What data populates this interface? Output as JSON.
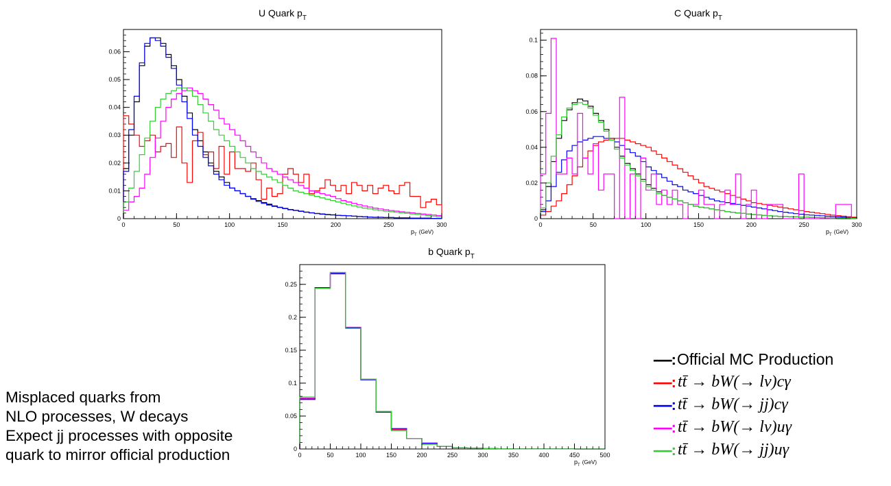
{
  "chart_data": [
    {
      "type": "line",
      "title": "U Quark p",
      "title_sub": "T",
      "xlabel": "p",
      "xlabel_sub": "T",
      "xlabel_unit": "(GeV)",
      "xlim": [
        0,
        300
      ],
      "ylim": [
        0,
        0.068
      ],
      "x_ticks": [
        0,
        50,
        100,
        150,
        200,
        250,
        300
      ],
      "y_ticks": [
        0,
        0.01,
        0.02,
        0.03,
        0.04,
        0.05,
        0.06
      ],
      "y_tick_labels": [
        "0",
        "0.01",
        "0.02",
        "0.03",
        "0.04",
        "0.05",
        "0.06"
      ],
      "bin_width": 5,
      "grid": false,
      "series": [
        {
          "key": "official",
          "color": "#000000",
          "values": [
            0.018,
            0.03,
            0.042,
            0.055,
            0.062,
            0.065,
            0.065,
            0.063,
            0.059,
            0.055,
            0.05,
            0.044,
            0.038,
            0.032,
            0.028,
            0.024,
            0.02,
            0.017,
            0.015,
            0.013,
            0.011,
            0.01,
            0.009,
            0.008,
            0.0072,
            0.0065,
            0.0058,
            0.0052,
            0.0046,
            0.0041,
            0.0037,
            0.0033,
            0.003,
            0.0027,
            0.0024,
            0.0021,
            0.0019,
            0.0017,
            0.0015,
            0.0014,
            0.0012,
            0.0011,
            0.001,
            0.0009,
            0.0008,
            0.0007,
            0.0006,
            0.0005,
            0.0005,
            0.0004,
            0.0004,
            0.0003,
            0.0003,
            0.0003,
            0.0002,
            0.0002,
            0.0002,
            0.0002,
            0.0001,
            0.0001
          ]
        },
        {
          "key": "lv_c",
          "color": "#ff0000",
          "values": [
            0.037,
            0.034,
            0.03,
            0.026,
            0.028,
            0.03,
            0.024,
            0.026,
            0.027,
            0.022,
            0.033,
            0.02,
            0.013,
            0.028,
            0.031,
            0.023,
            0.024,
            0.018,
            0.026,
            0.016,
            0.024,
            0.018,
            0.018,
            0.017,
            0.02,
            0.014,
            0.007,
            0.011,
            0.008,
            0.009,
            0.016,
            0.018,
            0.016,
            0.013,
            0.016,
            0.009,
            0.01,
            0.011,
            0.014,
            0.012,
            0.01,
            0.012,
            0.009,
            0.013,
            0.012,
            0.01,
            0.012,
            0.009,
            0.011,
            0.012,
            0.01,
            0.009,
            0.012,
            0.013,
            0.008,
            0.008,
            0.004,
            0.006,
            0.007,
            0.005
          ]
        },
        {
          "key": "jj_c",
          "color": "#0000ff",
          "values": [
            0.017,
            0.032,
            0.044,
            0.056,
            0.063,
            0.065,
            0.064,
            0.062,
            0.058,
            0.054,
            0.048,
            0.042,
            0.036,
            0.03,
            0.026,
            0.022,
            0.019,
            0.016,
            0.014,
            0.012,
            0.011,
            0.01,
            0.009,
            0.008,
            0.007,
            0.0062,
            0.0055,
            0.0049,
            0.0044,
            0.004,
            0.0036,
            0.0032,
            0.0029,
            0.0026,
            0.0023,
            0.0021,
            0.0018,
            0.0016,
            0.0014,
            0.0013,
            0.0012,
            0.0011,
            0.001,
            0.0009,
            0.0008,
            0.0007,
            0.0006,
            0.0005,
            0.0005,
            0.0004,
            0.0004,
            0.0003,
            0.0003,
            0.0003,
            0.0002,
            0.0002,
            0.0002,
            0.0002,
            0.0001,
            0.0001
          ]
        },
        {
          "key": "lv_u",
          "color": "#ff00ff",
          "values": [
            0.003,
            0.006,
            0.008,
            0.011,
            0.016,
            0.022,
            0.029,
            0.035,
            0.04,
            0.043,
            0.045,
            0.046,
            0.047,
            0.046,
            0.045,
            0.043,
            0.041,
            0.039,
            0.036,
            0.034,
            0.032,
            0.03,
            0.028,
            0.026,
            0.024,
            0.022,
            0.02,
            0.018,
            0.017,
            0.016,
            0.015,
            0.014,
            0.013,
            0.012,
            0.011,
            0.01,
            0.0095,
            0.009,
            0.0085,
            0.008,
            0.0072,
            0.0065,
            0.006,
            0.0055,
            0.005,
            0.0046,
            0.0042,
            0.0038,
            0.0035,
            0.0032,
            0.0029,
            0.0027,
            0.0025,
            0.0023,
            0.0021,
            0.0019,
            0.0017,
            0.0015,
            0.0013,
            0.0011
          ]
        },
        {
          "key": "jj_u",
          "color": "#33cc33",
          "values": [
            0.006,
            0.011,
            0.017,
            0.023,
            0.029,
            0.035,
            0.04,
            0.043,
            0.045,
            0.046,
            0.047,
            0.047,
            0.046,
            0.044,
            0.041,
            0.038,
            0.035,
            0.032,
            0.03,
            0.028,
            0.026,
            0.024,
            0.022,
            0.02,
            0.018,
            0.017,
            0.016,
            0.015,
            0.014,
            0.013,
            0.012,
            0.011,
            0.01,
            0.0095,
            0.009,
            0.0085,
            0.008,
            0.0075,
            0.007,
            0.0065,
            0.006,
            0.0055,
            0.005,
            0.0046,
            0.0042,
            0.0038,
            0.0035,
            0.0032,
            0.0029,
            0.0027,
            0.0025,
            0.0023,
            0.0021,
            0.0019,
            0.0017,
            0.0015,
            0.0013,
            0.0011,
            0.0009,
            0.0007
          ]
        }
      ]
    },
    {
      "type": "line",
      "title": "C Quark p",
      "title_sub": "T",
      "xlabel": "p",
      "xlabel_sub": "T",
      "xlabel_unit": "(GeV)",
      "xlim": [
        0,
        300
      ],
      "ylim": [
        0,
        0.106
      ],
      "x_ticks": [
        0,
        50,
        100,
        150,
        200,
        250,
        300
      ],
      "y_ticks": [
        0,
        0.02,
        0.04,
        0.06,
        0.08,
        0.1
      ],
      "y_tick_labels": [
        "0",
        "0.02",
        "0.04",
        "0.06",
        "0.08",
        "0.1"
      ],
      "bin_width": 5,
      "grid": false,
      "series": [
        {
          "key": "official",
          "color": "#000000",
          "values": [
            0.005,
            0.018,
            0.032,
            0.045,
            0.055,
            0.061,
            0.065,
            0.067,
            0.066,
            0.063,
            0.059,
            0.055,
            0.05,
            0.045,
            0.04,
            0.035,
            0.031,
            0.028,
            0.025,
            0.022,
            0.019,
            0.017,
            0.015,
            0.013,
            0.012,
            0.011,
            0.01,
            0.009,
            0.008,
            0.007,
            0.0065,
            0.006,
            0.0055,
            0.005,
            0.0045,
            0.004,
            0.0036,
            0.0032,
            0.0029,
            0.0026,
            0.0023,
            0.0021,
            0.0019,
            0.0017,
            0.0015,
            0.0013,
            0.0012,
            0.0011,
            0.001,
            0.0009,
            0.0008,
            0.0007,
            0.0006,
            0.0005,
            0.0005,
            0.0004,
            0.0004,
            0.0003,
            0.0003,
            0.0002
          ]
        },
        {
          "key": "lv_c",
          "color": "#ff0000",
          "values": [
            0.002,
            0.004,
            0.007,
            0.01,
            0.014,
            0.019,
            0.024,
            0.029,
            0.034,
            0.038,
            0.041,
            0.043,
            0.044,
            0.045,
            0.045,
            0.045,
            0.044,
            0.043,
            0.042,
            0.041,
            0.04,
            0.038,
            0.036,
            0.034,
            0.032,
            0.03,
            0.028,
            0.026,
            0.024,
            0.022,
            0.02,
            0.018,
            0.017,
            0.016,
            0.015,
            0.014,
            0.013,
            0.012,
            0.011,
            0.01,
            0.009,
            0.0085,
            0.008,
            0.0075,
            0.007,
            0.0065,
            0.006,
            0.0055,
            0.005,
            0.0045,
            0.004,
            0.0036,
            0.0032,
            0.0028,
            0.0024,
            0.002,
            0.0017,
            0.0014,
            0.0011,
            0.0008
          ]
        },
        {
          "key": "jj_c",
          "color": "#0000ff",
          "values": [
            0.004,
            0.01,
            0.018,
            0.026,
            0.033,
            0.038,
            0.041,
            0.043,
            0.044,
            0.045,
            0.046,
            0.046,
            0.045,
            0.044,
            0.043,
            0.041,
            0.039,
            0.037,
            0.035,
            0.032,
            0.029,
            0.027,
            0.025,
            0.023,
            0.021,
            0.019,
            0.018,
            0.016,
            0.015,
            0.014,
            0.013,
            0.012,
            0.011,
            0.01,
            0.0095,
            0.009,
            0.0085,
            0.008,
            0.0075,
            0.007,
            0.0065,
            0.006,
            0.0055,
            0.005,
            0.0045,
            0.004,
            0.0036,
            0.0032,
            0.0028,
            0.0025,
            0.0022,
            0.002,
            0.0018,
            0.0016,
            0.0014,
            0.0012,
            0.001,
            0.0008,
            0.0006,
            0.0005
          ]
        },
        {
          "key": "lv_u",
          "color": "#ff00ff",
          "values": [
            0.025,
            0.059,
            0.101,
            0.025,
            0.025,
            0.034,
            0.025,
            0.059,
            0.034,
            0.025,
            0.042,
            0.016,
            0.025,
            0.025,
            0.0,
            0.068,
            0.0,
            0.025,
            0.0,
            0.034,
            0.016,
            0.025,
            0.008,
            0.016,
            0.008,
            0.016,
            0.008,
            0.0,
            0.008,
            0.008,
            0.016,
            0.008,
            0.008,
            0.0,
            0.008,
            0.016,
            0.008,
            0.025,
            0.0,
            0.008,
            0.016,
            0.0,
            0.0,
            0.008,
            0.008,
            0.008,
            0.0,
            0.0,
            0.0,
            0.025,
            0.0,
            0.0,
            0.0,
            0.0,
            0.0,
            0.0,
            0.008,
            0.008,
            0.008,
            0.0
          ]
        },
        {
          "key": "jj_u",
          "color": "#33cc33",
          "values": [
            0.006,
            0.02,
            0.035,
            0.047,
            0.057,
            0.062,
            0.064,
            0.065,
            0.064,
            0.062,
            0.058,
            0.054,
            0.049,
            0.044,
            0.039,
            0.034,
            0.03,
            0.027,
            0.024,
            0.021,
            0.018,
            0.016,
            0.014,
            0.013,
            0.012,
            0.011,
            0.01,
            0.009,
            0.008,
            0.007,
            0.0065,
            0.006,
            0.0055,
            0.005,
            0.0045,
            0.004,
            0.0036,
            0.0032,
            0.0029,
            0.0026,
            0.0023,
            0.0021,
            0.0019,
            0.0017,
            0.0015,
            0.0013,
            0.0012,
            0.0011,
            0.001,
            0.0009,
            0.0008,
            0.0007,
            0.0006,
            0.0005,
            0.0005,
            0.0004,
            0.0004,
            0.0003,
            0.0003,
            0.0002
          ]
        }
      ]
    },
    {
      "type": "line",
      "title": "b Quark p",
      "title_sub": "T",
      "xlabel": "p",
      "xlabel_sub": "T",
      "xlabel_unit": "(GeV)",
      "xlim": [
        0,
        500
      ],
      "ylim": [
        0,
        0.28
      ],
      "x_ticks": [
        0,
        50,
        100,
        150,
        200,
        250,
        300,
        350,
        400,
        450,
        500
      ],
      "y_ticks": [
        0,
        0.05,
        0.1,
        0.15,
        0.2,
        0.25
      ],
      "y_tick_labels": [
        "0",
        "0.05",
        "0.1",
        "0.15",
        "0.2",
        "0.25"
      ],
      "bin_width": 25,
      "grid": false,
      "series": [
        {
          "key": "official",
          "color": "#000000",
          "values": [
            0.077,
            0.245,
            0.266,
            0.184,
            0.106,
            0.056,
            0.029,
            0.016,
            0.008,
            0.004,
            0.002,
            0.001,
            0.0005,
            0.0003,
            0.0002,
            0.0001,
            0.0001,
            0.0001,
            0,
            0
          ]
        },
        {
          "key": "lv_c",
          "color": "#ff0000",
          "values": [
            0.075,
            0.244,
            0.266,
            0.184,
            0.106,
            0.056,
            0.03,
            0.016,
            0.008,
            0.004,
            0.002,
            0.001,
            0.0005,
            0.0003,
            0.0002,
            0.0001,
            0.0001,
            0.0001,
            0,
            0
          ]
        },
        {
          "key": "jj_c",
          "color": "#0000ff",
          "values": [
            0.076,
            0.245,
            0.267,
            0.184,
            0.105,
            0.056,
            0.031,
            0.016,
            0.009,
            0.004,
            0.002,
            0.001,
            0.0005,
            0.0003,
            0.0002,
            0.0001,
            0.0001,
            0.0001,
            0,
            0
          ]
        },
        {
          "key": "lv_u",
          "color": "#ff00ff",
          "values": [
            0.077,
            0.244,
            0.268,
            0.185,
            0.106,
            0.057,
            0.029,
            0.016,
            0.008,
            0.004,
            0.002,
            0.001,
            0.0005,
            0.0003,
            0.0002,
            0.0001,
            0.0001,
            0.0001,
            0,
            0
          ]
        },
        {
          "key": "jj_u",
          "color": "#33cc33",
          "values": [
            0.079,
            0.244,
            0.268,
            0.183,
            0.106,
            0.057,
            0.028,
            0.016,
            0.007,
            0.004,
            0.002,
            0.001,
            0.0005,
            0.0003,
            0.0002,
            0.0001,
            0.0001,
            0.0001,
            0,
            0
          ]
        }
      ]
    }
  ],
  "legend": {
    "dash": "-----:",
    "entries": [
      {
        "color": "#000000",
        "text": "Official MC Production",
        "math": false
      },
      {
        "color": "#ff0000",
        "text": "tt̄ → bW(→ lν)cγ",
        "math": true
      },
      {
        "color": "#0000ff",
        "text": "tt̄ → bW(→ jj)cγ",
        "math": true
      },
      {
        "color": "#ff00ff",
        "text": "tt̄ → bW(→ lν)uγ",
        "math": true
      },
      {
        "color": "#33cc33",
        "text": "tt̄ → bW(→ jj)uγ",
        "math": true
      }
    ]
  },
  "notes": [
    "Misplaced quarks from",
    "NLO processes, W decays",
    "Expect jj processes with opposite",
    "quark to mirror official production"
  ]
}
